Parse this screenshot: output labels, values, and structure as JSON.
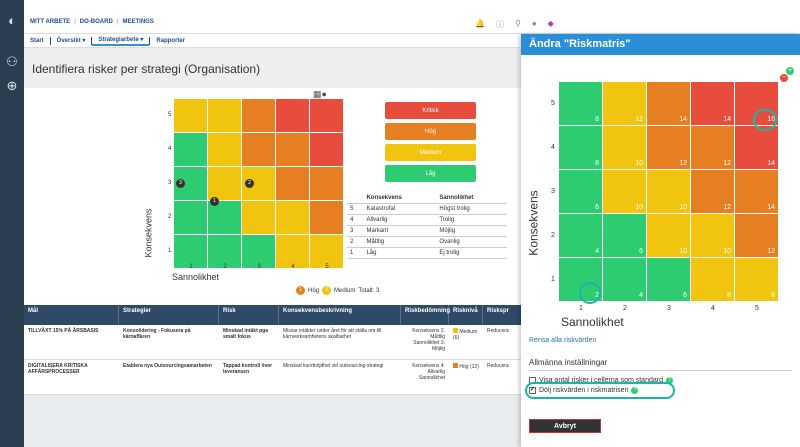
{
  "nav": {
    "mitt_arbete": "MITT ARBETE",
    "do_board": "DO-BOARD",
    "meetings": "MEETINGS"
  },
  "subnav": {
    "start": "Start",
    "oversikt": "Översikt",
    "strategiarbete": "Strategiarbete",
    "rapporter": "Rapporter"
  },
  "page": {
    "title": "Identifiera risker per strategi (Organisation)"
  },
  "matrix": {
    "ytitle": "Konsekvens",
    "xtitle": "Sannolikhet",
    "ylabels": [
      "5",
      "4",
      "3",
      "2",
      "1"
    ],
    "xlabels": [
      "1",
      "2",
      "3",
      "4",
      "5"
    ],
    "markers": [
      "3",
      "2",
      "1"
    ]
  },
  "legend": {
    "kritisk": "Kritisk",
    "hog": "Hög",
    "medium": "Medium",
    "lag": "Låg"
  },
  "keytable": {
    "h1": "Konsekvens",
    "h2": "Sannolikhet",
    "rows": [
      {
        "n": "5",
        "k": "Katastrofal",
        "s": "Högst trolig"
      },
      {
        "n": "4",
        "k": "Allvarlig",
        "s": "Trolig"
      },
      {
        "n": "3",
        "k": "Markant",
        "s": "Möjlig"
      },
      {
        "n": "2",
        "k": "Måttlig",
        "s": "Ovanlig"
      },
      {
        "n": "1",
        "k": "Låg",
        "s": "Ej trolig"
      }
    ]
  },
  "totals": {
    "hog_count": "1",
    "hog": "Hög",
    "medium_count": "2",
    "medium": "Medium",
    "total": "Totalt: 3"
  },
  "table": {
    "headers": [
      "Mål",
      "Strategier",
      "Risk",
      "Konsekvensbeskrivning",
      "Riskbedömning",
      "Risknivå",
      "Riskspr"
    ],
    "rows": [
      {
        "mal": "TILLVÄXT 15% PÅ ÅRSBASIS",
        "strategi": "Konsolidering - Fokusera på kärnaffären",
        "risk": "Minskad intäkt pga smalt fokus",
        "beskrivning": "Missar intäkter under året för att ställa om till kärnverksamhetens skalbarhet",
        "bedomning": "Konsekvens 2. Måttlig  Sannolikhet 3. Möjlig",
        "niva": "Medium (6)",
        "spr": "Reducera"
      },
      {
        "mal": "DIGITALISERA KRITISKA AFFÄRSPROCESSER",
        "strategi": "Etablera nya Outsourcingsamarbeten",
        "risk": "Tappad kontroll över leveransen",
        "beskrivning": "Minskad kundnöjdhet vid outsourcing-strategi",
        "bedomning": "Konsekvens 4. Allvarlig  Sannolikhet",
        "niva": "Hög (12)",
        "spr": "Reducera"
      }
    ]
  },
  "drawer": {
    "title": "Ändra \"Riskmatris\"",
    "ytitle": "Konsekvens",
    "xtitle": "Sannolikhet",
    "ylabels": [
      "5",
      "4",
      "3",
      "2",
      "1"
    ],
    "xlabels": [
      "1",
      "2",
      "3",
      "4",
      "5"
    ],
    "values": [
      [
        "8",
        "12",
        "14",
        "14",
        "16"
      ],
      [
        "8",
        "10",
        "12",
        "12",
        "14"
      ],
      [
        "6",
        "10",
        "10",
        "12",
        "14"
      ],
      [
        "4",
        "6",
        "10",
        "10",
        "12"
      ],
      [
        "2",
        "4",
        "6",
        "8",
        "8"
      ]
    ],
    "rensa": "Rensa alla riskvärden",
    "section": "Allmänna inställningar",
    "opt1": "Visa antal risker i cellerna som standard",
    "opt2": "Dölj riskvärden i riskmatrisen",
    "cancel": "Avbryt"
  },
  "colors": {
    "green": "#2ecc71",
    "yellow": "#f1c40f",
    "orange": "#e67e22",
    "red": "#e74c3c",
    "header_blue": "#2a8fd6",
    "highlight": "#1bb5a8"
  }
}
